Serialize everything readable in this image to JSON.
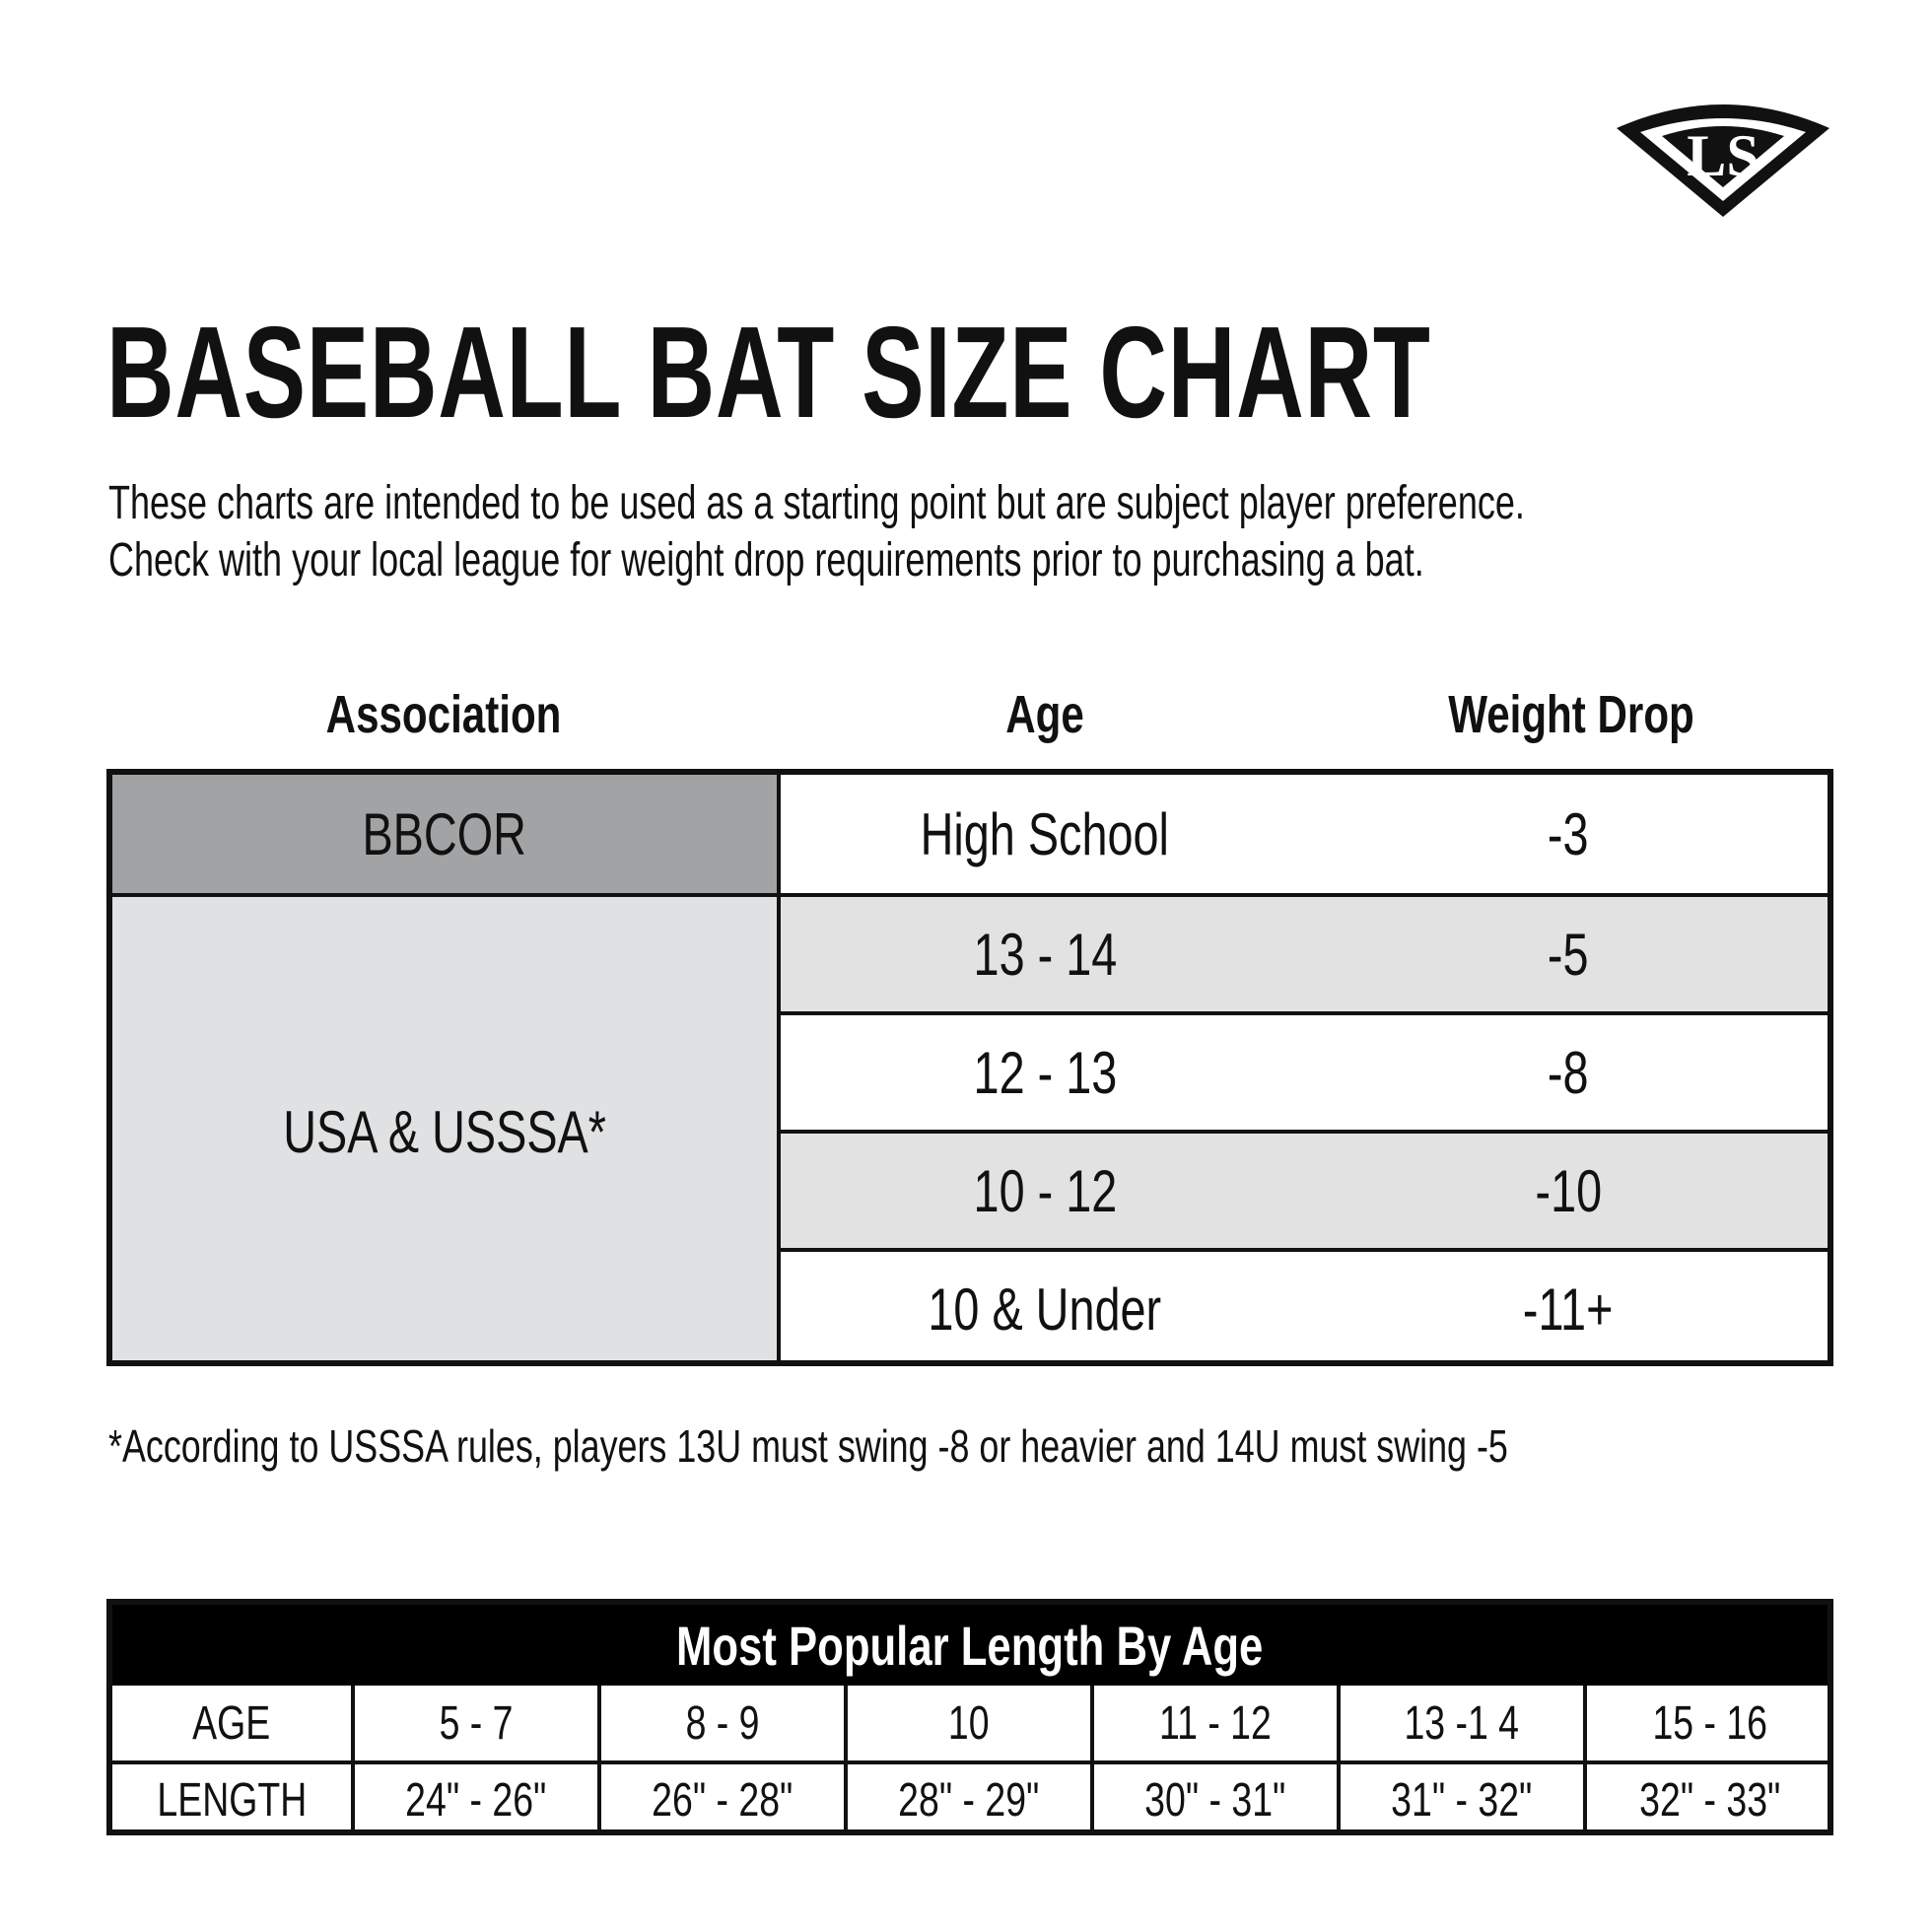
{
  "title": "BASEBALL BAT SIZE CHART",
  "intro": [
    "These charts are intended to be used as a starting point but are subject  player preference.",
    "Check with your local league for weight drop requirements prior to purchasing a bat."
  ],
  "size_table": {
    "headers": [
      "Association",
      "Age",
      "Weight Drop"
    ],
    "groups": [
      {
        "association": "BBCOR",
        "rows": [
          {
            "age": "High School",
            "drop": "-3"
          }
        ]
      },
      {
        "association": "USA & USSSA*",
        "rows": [
          {
            "age": "13 - 14",
            "drop": "-5"
          },
          {
            "age": "12 - 13",
            "drop": "-8"
          },
          {
            "age": "10 - 12",
            "drop": "-10"
          },
          {
            "age": "10 & Under",
            "drop": "-11+"
          }
        ]
      }
    ]
  },
  "footnote": "*According to USSSA rules, players 13U must swing -8 or heavier  and 14U must swing -5",
  "length_table": {
    "title": "Most Popular Length By Age",
    "rows": [
      {
        "label": "AGE",
        "values": [
          "5 - 7",
          "8 - 9",
          "10",
          "11 - 12",
          "13 -1 4",
          "15 - 16"
        ]
      },
      {
        "label": "LENGTH",
        "values": [
          "24\" - 26\"",
          "26\" - 28\"",
          "28\" - 29\"",
          "30\" - 31\"",
          "31\" - 32\"",
          "32\" - 33\""
        ]
      }
    ]
  },
  "logo": {
    "name": "ls-diamond-logo",
    "text": "LS"
  },
  "colors": {
    "ink": "#111111",
    "bbcor_fill": "#a2a3a5",
    "usa_fill": "#e0e1e2",
    "shaded_row": "#e2e2e3",
    "white_row": "#ffffff",
    "length_header": "#000000"
  }
}
